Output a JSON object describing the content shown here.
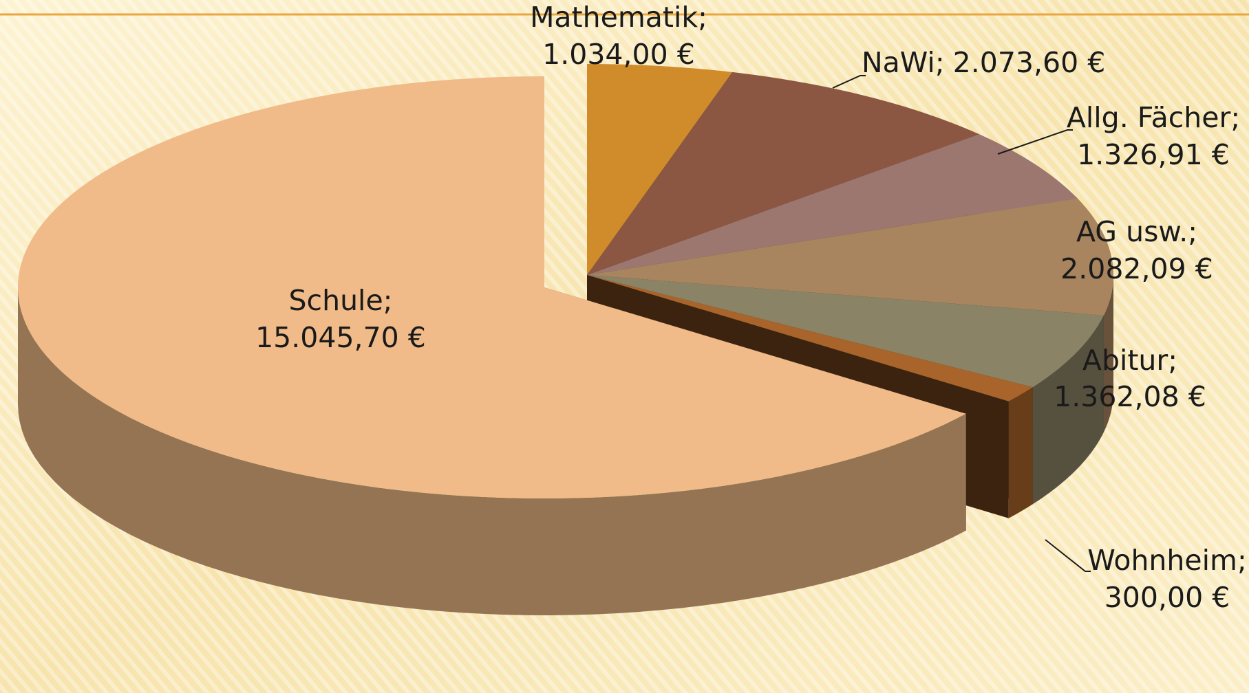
{
  "chart_data": {
    "type": "pie3d",
    "categories": [
      "Mathematik;",
      "NaWi;",
      "Allg. Fächer;",
      "AG usw.;",
      "Abitur;",
      "Wohnheim;",
      "Schule;"
    ],
    "values": [
      1034.0,
      2073.6,
      1326.91,
      2082.09,
      1362.08,
      300.0,
      15045.7
    ],
    "value_labels": [
      "1.034,00 €",
      "2.073,60 €",
      "1.326,91 €",
      "2.082,09 €",
      "1.362,08 €",
      "300,00 €",
      "15.045,70 €"
    ],
    "colors": [
      "#d08c2a",
      "#8b5642",
      "#9c7770",
      "#a8845f",
      "#8a8365",
      "#a8642a",
      "#f0bb88"
    ]
  }
}
